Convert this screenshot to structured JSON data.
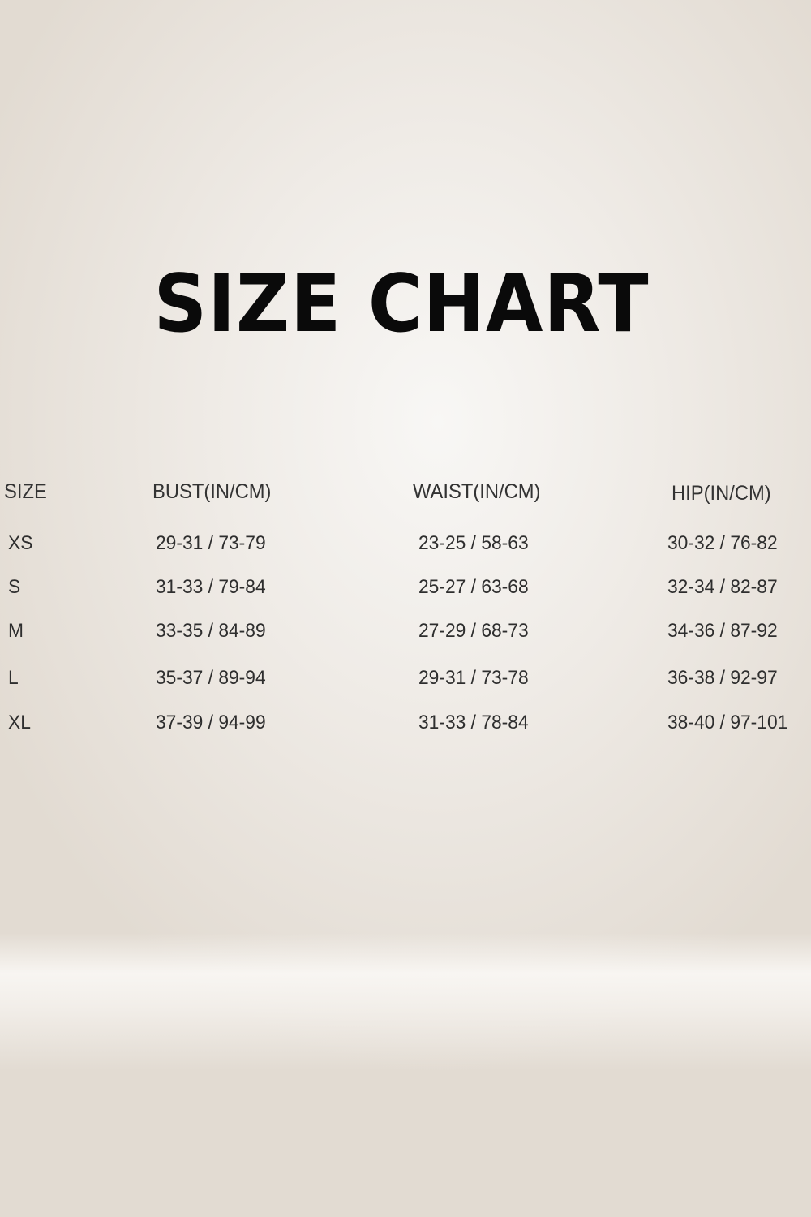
{
  "title": "SIZE CHART",
  "table": {
    "headers": [
      "SIZE",
      "BUST(IN/CM)",
      "WAIST(IN/CM)",
      "HIP(IN/CM)"
    ],
    "rows": [
      [
        "XS",
        "29-31 / 73-79",
        "23-25 / 58-63",
        "30-32 / 76-82"
      ],
      [
        "S",
        "31-33 / 79-84",
        "25-27 / 63-68",
        "32-34 / 82-87"
      ],
      [
        "M",
        "33-35 / 84-89",
        "27-29 / 68-73",
        "34-36 / 87-92"
      ],
      [
        "L",
        "35-37 / 89-94",
        "29-31 / 73-78",
        "36-38 / 92-97"
      ],
      [
        "XL",
        "37-39 / 94-99",
        "31-33 / 78-84",
        "38-40 / 97-101"
      ]
    ]
  }
}
